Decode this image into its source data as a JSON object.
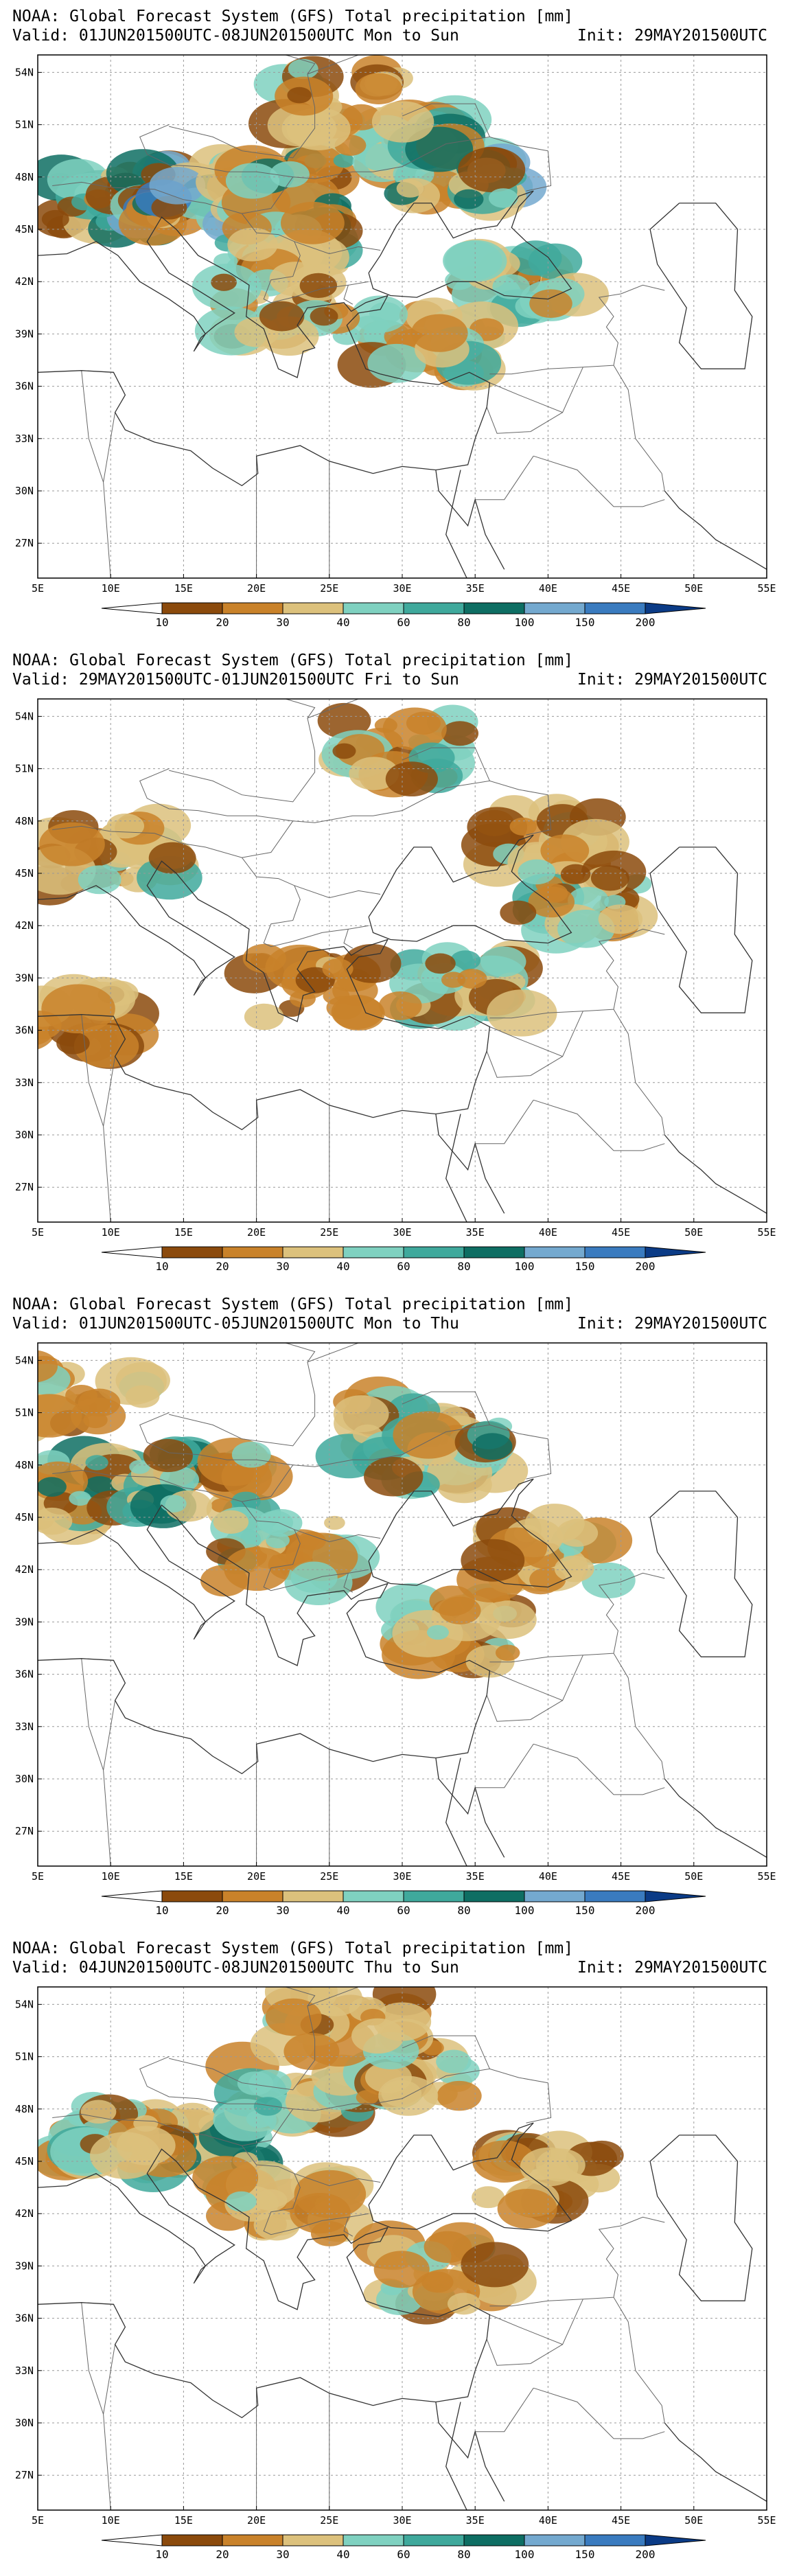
{
  "common": {
    "title": "NOAA: Global Forecast System (GFS) Total precipitation [mm]",
    "init": "Init: 29MAY201500UTC",
    "lon_ticks": [
      "5E",
      "10E",
      "15E",
      "20E",
      "25E",
      "30E",
      "35E",
      "40E",
      "45E",
      "50E",
      "55E"
    ],
    "lat_ticks": [
      "54N",
      "51N",
      "48N",
      "45N",
      "42N",
      "39N",
      "36N",
      "33N",
      "30N",
      "27N"
    ],
    "lon_range": [
      5,
      55
    ],
    "lat_range": [
      25,
      55
    ],
    "colorbar": {
      "labels": [
        "10",
        "20",
        "30",
        "40",
        "60",
        "80",
        "100",
        "150",
        "200"
      ],
      "colors": [
        "#ffffff",
        "#8b4a0c",
        "#c9822a",
        "#dcc17c",
        "#7fd1c0",
        "#3fa99c",
        "#0e6e63",
        "#74a9cf",
        "#3a7bbf",
        "#0b3b86"
      ]
    },
    "colors": {
      "land": "#ffffff",
      "coast": "#333333",
      "border": "#666666",
      "grid": "#999999"
    }
  },
  "panels": [
    {
      "valid": "Valid: 01JUN201500UTC-08JUN201500UTC Mon to Sun",
      "precip_level": "high",
      "regions": [
        {
          "lon": 10,
          "lat": 46.5,
          "level": 6
        },
        {
          "lon": 16,
          "lat": 47,
          "level": 7
        },
        {
          "lon": 22,
          "lat": 47.5,
          "level": 5
        },
        {
          "lon": 30,
          "lat": 50,
          "level": 4
        },
        {
          "lon": 34,
          "lat": 48.5,
          "level": 6
        },
        {
          "lon": 22,
          "lat": 44,
          "level": 5
        },
        {
          "lon": 38,
          "lat": 42,
          "level": 4
        },
        {
          "lon": 32,
          "lat": 38.5,
          "level": 4
        },
        {
          "lon": 22,
          "lat": 40.5,
          "level": 3
        },
        {
          "lon": 26,
          "lat": 52.5,
          "level": 3
        }
      ]
    },
    {
      "valid": "Valid: 29MAY201500UTC-01JUN201500UTC Fri to Sun",
      "precip_level": "low",
      "regions": [
        {
          "lon": 30,
          "lat": 52,
          "level": 4
        },
        {
          "lon": 40,
          "lat": 47,
          "level": 3
        },
        {
          "lon": 10,
          "lat": 46,
          "level": 4
        },
        {
          "lon": 34,
          "lat": 38.5,
          "level": 4
        },
        {
          "lon": 42,
          "lat": 43.5,
          "level": 4
        },
        {
          "lon": 24,
          "lat": 38.5,
          "level": 2
        },
        {
          "lon": 7,
          "lat": 36.5,
          "level": 2
        }
      ]
    },
    {
      "valid": "Valid: 01JUN201500UTC-05JUN201500UTC Mon to Thu",
      "precip_level": "medium",
      "regions": [
        {
          "lon": 9,
          "lat": 46.5,
          "level": 5
        },
        {
          "lon": 16,
          "lat": 47,
          "level": 5
        },
        {
          "lon": 30,
          "lat": 50,
          "level": 4
        },
        {
          "lon": 33,
          "lat": 48.5,
          "level": 5
        },
        {
          "lon": 22,
          "lat": 43,
          "level": 4
        },
        {
          "lon": 34,
          "lat": 38.5,
          "level": 4
        },
        {
          "lon": 40,
          "lat": 43,
          "level": 3
        },
        {
          "lon": 8,
          "lat": 52,
          "level": 3
        }
      ]
    },
    {
      "valid": "Valid: 04JUN201500UTC-08JUN201500UTC Thu to Sun",
      "precip_level": "medium",
      "regions": [
        {
          "lon": 16,
          "lat": 46,
          "level": 5
        },
        {
          "lon": 23,
          "lat": 49,
          "level": 4
        },
        {
          "lon": 30,
          "lat": 50,
          "level": 3
        },
        {
          "lon": 22,
          "lat": 42.5,
          "level": 3
        },
        {
          "lon": 33,
          "lat": 38.5,
          "level": 3
        },
        {
          "lon": 40,
          "lat": 44,
          "level": 3
        },
        {
          "lon": 10,
          "lat": 46.5,
          "level": 4
        },
        {
          "lon": 26,
          "lat": 53,
          "level": 3
        }
      ]
    }
  ]
}
